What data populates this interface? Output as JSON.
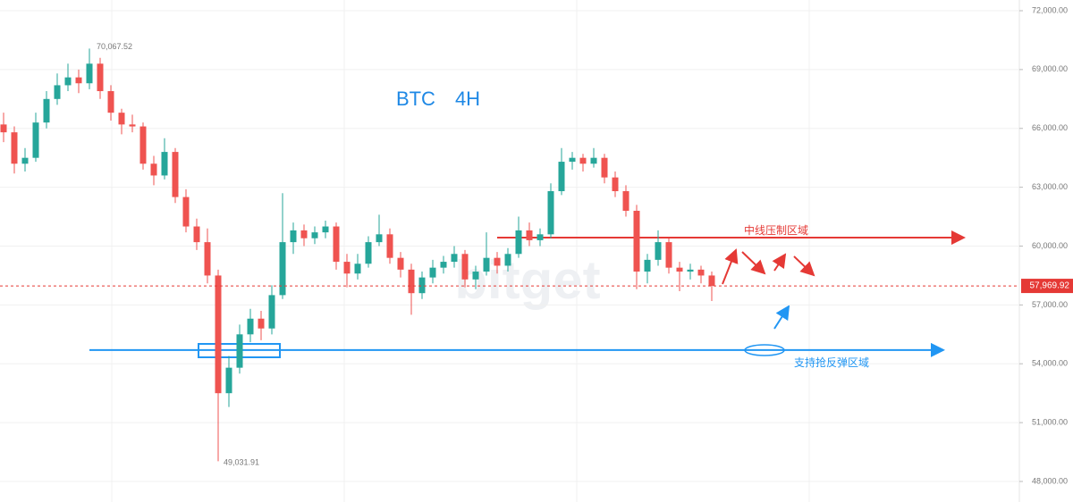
{
  "chart_data": {
    "type": "candlestick",
    "title": "BTC　4H",
    "watermark": "bitget",
    "up_color": "#26a69a",
    "down_color": "#ef5350",
    "grid": true,
    "ylim": [
      46953,
      72546
    ],
    "yticks": [
      {
        "value": 48000,
        "label": "48,000.00"
      },
      {
        "value": 51000,
        "label": "51,000.00"
      },
      {
        "value": 54000,
        "label": "54,000.00"
      },
      {
        "value": 57000,
        "label": "57,000.00"
      },
      {
        "value": 60000,
        "label": "60,000.00"
      },
      {
        "value": 63000,
        "label": "63,000.00"
      },
      {
        "value": 66000,
        "label": "66,000.00"
      },
      {
        "value": 69000,
        "label": "69,000.00"
      },
      {
        "value": 72000,
        "label": "72,000.00"
      }
    ],
    "open": [
      66200,
      65800,
      64200,
      64500,
      66300,
      67500,
      68200,
      68600,
      68300,
      69300,
      67900,
      66800,
      66200,
      66100,
      64200,
      63600,
      64800,
      62500,
      61000,
      60200,
      58500,
      52500,
      53800,
      55500,
      56300,
      55800,
      57500,
      60200,
      60800,
      60400,
      60700,
      61000,
      59200,
      58600,
      59100,
      60200,
      60600,
      59400,
      58800,
      57600,
      58400,
      58900,
      59200,
      59600,
      58300,
      58700,
      59400,
      59000,
      59600,
      60800,
      60300,
      60600,
      62800,
      64300,
      64500,
      64200,
      64500,
      63500,
      62800,
      61800,
      58700,
      59300,
      60200,
      58900,
      58700,
      58800,
      58500
    ],
    "high": [
      66800,
      66100,
      65000,
      66800,
      67900,
      68800,
      69300,
      69000,
      70067.52,
      69600,
      68200,
      67000,
      66700,
      66300,
      64600,
      65500,
      65000,
      62900,
      61400,
      60900,
      58800,
      54400,
      56000,
      56800,
      56700,
      58000,
      62700,
      61200,
      61100,
      61000,
      61300,
      61200,
      59600,
      59600,
      60500,
      61600,
      60900,
      59700,
      59100,
      58700,
      59300,
      59500,
      60000,
      59800,
      59000,
      60700,
      59700,
      59900,
      61500,
      61200,
      60900,
      63200,
      65000,
      64800,
      64700,
      65000,
      64700,
      63800,
      63100,
      62100,
      59600,
      60800,
      60400,
      59200,
      59100,
      59000,
      58700
    ],
    "low": [
      65300,
      63700,
      63800,
      64300,
      66000,
      67200,
      67900,
      67800,
      68000,
      67500,
      66400,
      65700,
      65800,
      63900,
      63100,
      63400,
      62200,
      60700,
      59800,
      58100,
      49031.91,
      51800,
      53500,
      55100,
      55200,
      55500,
      57300,
      59600,
      60000,
      60100,
      60400,
      58800,
      57900,
      58300,
      58900,
      60000,
      59100,
      58400,
      56500,
      57300,
      58100,
      58600,
      58900,
      57900,
      57800,
      58500,
      58600,
      58700,
      59400,
      60000,
      60000,
      60400,
      62600,
      63900,
      63800,
      64000,
      63200,
      62500,
      61500,
      57800,
      58100,
      59000,
      58600,
      57700,
      58300,
      58100,
      57200
    ],
    "close": [
      65800,
      64200,
      64500,
      66300,
      67500,
      68200,
      68600,
      68300,
      69300,
      67900,
      66800,
      66200,
      66100,
      64200,
      63600,
      64800,
      62500,
      61000,
      60200,
      58500,
      52500,
      53800,
      55500,
      56300,
      55800,
      57500,
      60200,
      60800,
      60400,
      60700,
      61000,
      59200,
      58600,
      59100,
      60200,
      60600,
      59400,
      58800,
      57600,
      58400,
      58900,
      59200,
      59600,
      58300,
      58700,
      59400,
      59000,
      59600,
      60800,
      60300,
      60600,
      62800,
      64300,
      64500,
      64200,
      64500,
      63500,
      62800,
      61800,
      58700,
      59300,
      60200,
      58900,
      58700,
      58800,
      58500,
      57970
    ],
    "high_label": {
      "value": 70067.52,
      "label": "70,067.52"
    },
    "low_label": {
      "value": 49031.91,
      "label": "49,031.91"
    },
    "last_price": {
      "value": 57969.92,
      "label": "57,969.92"
    },
    "resistance": {
      "value": 60430,
      "label": "中线压制区域"
    },
    "support": {
      "value": 54700,
      "label": "支持抢反弹区域"
    }
  }
}
